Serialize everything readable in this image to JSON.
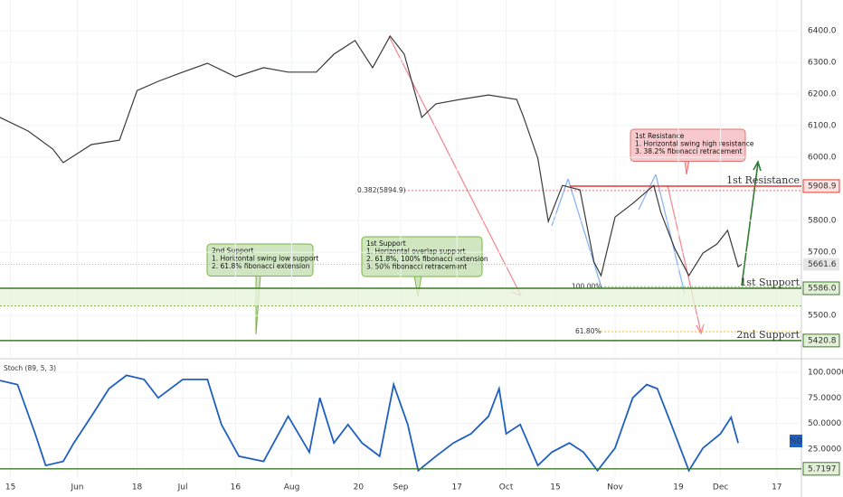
{
  "chart_data": [
    {
      "type": "line",
      "x": [
        0,
        8,
        15,
        18,
        26,
        34,
        39,
        45,
        52,
        59,
        67,
        75,
        82,
        90,
        95,
        101,
        106,
        111,
        115,
        120,
        124,
        131,
        139,
        147,
        149,
        153,
        156,
        160,
        165,
        169,
        171,
        175,
        180,
        186,
        188,
        192,
        196,
        200,
        204,
        207,
        210,
        211
      ],
      "series": [
        {
          "color": "#3a3a3a",
          "values": [
            6126,
            6083,
            6026,
            5983,
            6040,
            6054,
            6211,
            6240,
            6269,
            6297,
            6254,
            6283,
            6269,
            6269,
            6326,
            6369,
            6283,
            6383,
            6326,
            6126,
            6169,
            6183,
            6197,
            6183,
            6126,
            5997,
            5797,
            5911,
            5897,
            5669,
            5626,
            5811,
            5854,
            5911,
            5826,
            5711,
            5626,
            5697,
            5726,
            5769,
            5654,
            5661.6
          ]
        }
      ],
      "xlim": [
        0,
        228
      ],
      "ylim": [
        5369,
        6497
      ],
      "yticks": [
        {
          "value": 6400,
          "label": "6400.0"
        },
        {
          "value": 6300,
          "label": "6300.0"
        },
        {
          "value": 6200,
          "label": "6200.0"
        },
        {
          "value": 6100,
          "label": "6100.0"
        },
        {
          "value": 6000,
          "label": "6000.0"
        },
        {
          "value": 5800,
          "label": "5800.0"
        },
        {
          "value": 5700,
          "label": "5700.0"
        },
        {
          "value": 5500,
          "label": "5500.0"
        }
      ],
      "grid": true,
      "levels": [
        {
          "label": "1st Resistance",
          "value": 5908.9,
          "price_label": "5908.9",
          "color": "#e53935"
        },
        {
          "label": "1st Support",
          "value": 5586,
          "price_label": "5586.0",
          "color": "#3d7a2a"
        },
        {
          "label": "2nd Support",
          "value": 5420.8,
          "price_label": "5420.8",
          "color": "#3d7a2a"
        }
      ],
      "current_price": 5661.6,
      "support_zone": [
        5530,
        5586
      ],
      "fib_levels": [
        {
          "label": "0.382(5894.9)",
          "value": 5894.9,
          "color": "#e57373"
        },
        {
          "label": "100.00%",
          "value": 5591,
          "color": "#8bc34a"
        },
        {
          "label": "61.80%",
          "value": 5449,
          "color": "#f0b429"
        }
      ],
      "annotations": [
        {
          "color": "red",
          "lines": [
            "1st Resistance",
            "1. Horizontal swing high resistance",
            "3. 38.2% fibonacci retracement"
          ]
        },
        {
          "color": "green",
          "lines": [
            "2nd Support",
            "1. Horizontal swing low support",
            "2. 61.8% fibonacci extension"
          ]
        },
        {
          "color": "green",
          "lines": [
            "1st Support",
            "1. Horizontal overlap support",
            "2. 61.8%, 100% fibonacci extension",
            "3. 50% fibonacci retracement"
          ]
        }
      ]
    },
    {
      "type": "line",
      "title": "Stoch (89, 5, 3)",
      "legend_badge": "%D",
      "x": [
        0,
        5,
        10,
        13,
        18,
        21,
        26,
        31,
        36,
        41,
        45,
        52,
        59,
        63,
        68,
        75,
        82,
        88,
        91,
        95,
        99,
        103,
        108,
        112,
        116,
        119,
        124,
        129,
        134,
        139,
        142,
        144,
        148,
        153,
        157,
        162,
        166,
        170,
        175,
        180,
        184,
        187,
        191,
        196,
        200,
        205,
        208,
        210
      ],
      "series": [
        {
          "color": "#1f5fbf",
          "values": [
            92,
            88,
            40,
            9,
            13,
            31,
            57,
            84,
            97,
            93,
            75,
            93,
            93,
            49,
            18,
            13,
            57,
            22,
            75,
            31,
            49,
            31,
            18,
            88,
            49,
            4,
            18,
            31,
            40,
            57,
            84,
            40,
            49,
            9,
            22,
            31,
            22,
            4,
            26,
            75,
            88,
            84,
            49,
            4,
            26,
            40,
            56,
            31
          ]
        }
      ],
      "xlim": [
        0,
        228
      ],
      "ylim": [
        -2.4,
        110.6
      ],
      "yticks": [
        {
          "value": 100,
          "label": "100.0000"
        },
        {
          "value": 75,
          "label": "75.0000"
        },
        {
          "value": 50,
          "label": "50.0000"
        },
        {
          "value": 25,
          "label": "25.0000"
        }
      ],
      "xticks": [
        {
          "value": 3,
          "label": "15"
        },
        {
          "value": 22,
          "label": "Jun"
        },
        {
          "value": 39,
          "label": "18"
        },
        {
          "value": 52,
          "label": "Jul"
        },
        {
          "value": 67,
          "label": "16"
        },
        {
          "value": 83,
          "label": "Aug"
        },
        {
          "value": 102,
          "label": "20"
        },
        {
          "value": 114,
          "label": "Sep"
        },
        {
          "value": 130,
          "label": "17"
        },
        {
          "value": 144,
          "label": "Oct"
        },
        {
          "value": 158,
          "label": "15"
        },
        {
          "value": 175,
          "label": "Nov"
        },
        {
          "value": 193,
          "label": "19"
        },
        {
          "value": 205,
          "label": "Dec"
        },
        {
          "value": 221,
          "label": "17"
        }
      ],
      "grid": true,
      "level": 5.7197
    }
  ]
}
